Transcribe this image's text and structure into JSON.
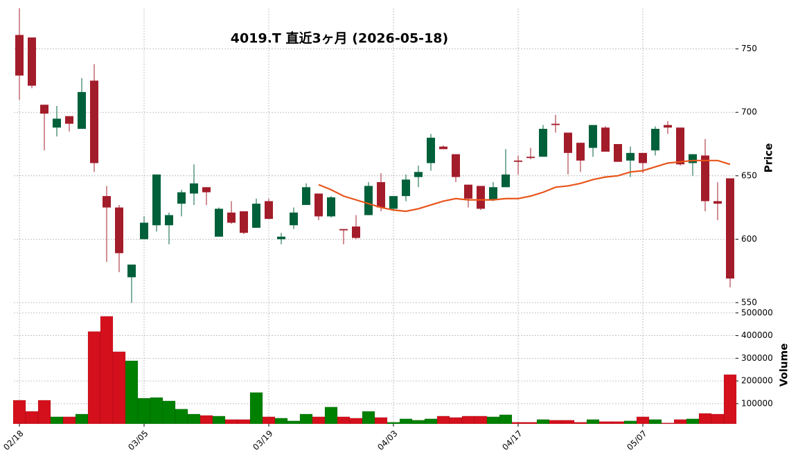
{
  "chart_data": {
    "type": "candlestick",
    "title": "4019.T  直近3ヶ月  (2026-05-18)",
    "categories": [
      "02/18",
      null,
      null,
      null,
      null,
      null,
      null,
      null,
      null,
      null,
      "03/05",
      null,
      null,
      null,
      null,
      null,
      null,
      null,
      null,
      null,
      "03/19",
      null,
      null,
      null,
      null,
      null,
      null,
      null,
      null,
      null,
      "04/03",
      null,
      null,
      null,
      null,
      null,
      null,
      null,
      null,
      null,
      "04/17",
      null,
      null,
      null,
      null,
      null,
      null,
      null,
      null,
      null,
      "05/07",
      null,
      null,
      null,
      null,
      null,
      null,
      null
    ],
    "open": [
      761,
      759,
      706,
      688,
      697,
      687,
      725,
      634,
      625,
      570,
      600,
      611,
      611,
      628,
      636,
      641,
      602,
      621,
      622,
      609,
      630,
      600,
      611,
      627,
      636,
      618,
      608,
      610,
      619,
      645,
      624,
      634,
      649,
      660,
      673,
      667,
      643,
      642,
      631,
      641,
      662,
      665,
      665,
      691,
      684,
      676,
      672,
      688,
      675,
      662,
      668,
      670,
      690,
      688,
      660,
      666,
      630,
      648
    ],
    "high": [
      782,
      759,
      706,
      705,
      697,
      727,
      738,
      642,
      627,
      580,
      618,
      651,
      621,
      639,
      659,
      641,
      625,
      630,
      622,
      632,
      632,
      605,
      625,
      644,
      636,
      634,
      608,
      619,
      645,
      652,
      634,
      651,
      658,
      683,
      674,
      667,
      643,
      642,
      645,
      671,
      666,
      672,
      690,
      698,
      684,
      676,
      690,
      689,
      675,
      673,
      668,
      689,
      693,
      688,
      667,
      679,
      645,
      648
    ],
    "low": [
      710,
      719,
      670,
      681,
      685,
      687,
      653,
      582,
      574,
      550,
      600,
      606,
      596,
      618,
      627,
      627,
      602,
      612,
      604,
      609,
      616,
      596,
      608,
      627,
      615,
      617,
      596,
      600,
      619,
      622,
      623,
      630,
      641,
      654,
      671,
      645,
      625,
      623,
      630,
      641,
      651,
      663,
      665,
      684,
      651,
      653,
      665,
      669,
      661,
      649,
      652,
      666,
      683,
      658,
      650,
      622,
      615,
      562
    ],
    "close": [
      729,
      721,
      699,
      695,
      691,
      716,
      660,
      625,
      589,
      580,
      613,
      651,
      619,
      637,
      644,
      637,
      624,
      613,
      605,
      628,
      616,
      602,
      621,
      641,
      618,
      633,
      607,
      601,
      642,
      625,
      634,
      647,
      653,
      680,
      671,
      649,
      632,
      624,
      641,
      651,
      661,
      664,
      687,
      690,
      668,
      662,
      690,
      669,
      661,
      668,
      660,
      687,
      688,
      659,
      667,
      630,
      628,
      569
    ],
    "ylim": [
      550,
      782
    ],
    "yticks": [
      550,
      600,
      650,
      700,
      750
    ],
    "y_label": "Price",
    "grid": true,
    "up_color": "#00603a",
    "down_color": "#a31c2a",
    "sma": {
      "color": "#e8541a",
      "values": [
        null,
        null,
        null,
        null,
        null,
        null,
        null,
        null,
        null,
        null,
        null,
        null,
        null,
        null,
        null,
        null,
        null,
        null,
        null,
        null,
        null,
        null,
        null,
        null,
        643,
        639,
        634,
        631,
        628,
        625,
        623,
        622,
        624,
        627,
        630,
        632,
        631,
        631,
        631,
        632,
        632,
        634,
        637,
        641,
        642,
        644,
        647,
        649,
        650,
        653,
        654,
        657,
        660,
        661,
        662,
        662,
        662,
        659
      ]
    },
    "volume": {
      "values": [
        115000,
        66000,
        115000,
        42000,
        42000,
        54000,
        418000,
        485000,
        329000,
        289000,
        124000,
        127000,
        112000,
        76000,
        54000,
        48000,
        45000,
        30000,
        30000,
        149000,
        42000,
        36000,
        24000,
        54000,
        42000,
        85000,
        42000,
        36000,
        66000,
        39000,
        18000,
        33000,
        27000,
        33000,
        45000,
        39000,
        45000,
        45000,
        42000,
        51000,
        18000,
        18000,
        30000,
        27000,
        27000,
        18000,
        30000,
        21000,
        21000,
        24000,
        42000,
        30000,
        15000,
        30000,
        33000,
        57000,
        54000,
        228000
      ],
      "ylim": [
        11000,
        527000
      ],
      "yticks": [
        100000,
        200000,
        300000,
        400000,
        500000
      ],
      "label": "Volume",
      "up_color": "#008000",
      "down_color": "#d4101c"
    }
  }
}
